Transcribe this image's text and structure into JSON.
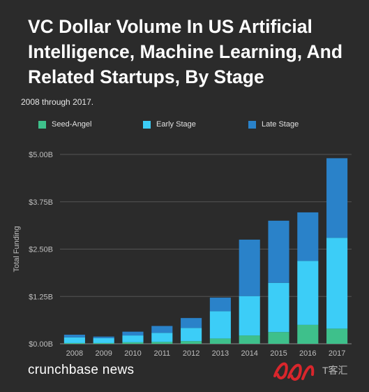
{
  "header": {
    "title": "VC Dollar Volume In US Artificial Intelligence, Machine Learning, And Related Startups, By Stage",
    "subtitle": "2008 through 2017."
  },
  "footer": {
    "brand": "crunchbase news",
    "watermark_text": "T客汇"
  },
  "colors": {
    "background": "#2b2b2b",
    "seed": "#3ec08b",
    "early": "#3ccdf7",
    "late": "#2a82c9",
    "grid": "#555555",
    "axis_text": "#bfbfbf"
  },
  "chart_data": {
    "type": "bar",
    "stacked": true,
    "title": "VC Dollar Volume In US Artificial Intelligence, Machine Learning, And Related Startups, By Stage",
    "subtitle": "2008 through 2017.",
    "xlabel": "",
    "ylabel": "Total Funding",
    "ylim": [
      0,
      5.0
    ],
    "yticks": [
      0,
      1.25,
      2.5,
      3.75,
      5.0
    ],
    "ytick_labels": [
      "$0.00B",
      "$1.25B",
      "$2.50B",
      "$3.75B",
      "$5.00B"
    ],
    "grid": true,
    "legend_position": "top",
    "categories": [
      "2008",
      "2009",
      "2010",
      "2011",
      "2012",
      "2013",
      "2014",
      "2015",
      "2016",
      "2017"
    ],
    "series": [
      {
        "name": "Seed-Angel",
        "color": "#3ec08b",
        "values": [
          0.02,
          0.02,
          0.04,
          0.05,
          0.07,
          0.14,
          0.22,
          0.31,
          0.5,
          0.4
        ]
      },
      {
        "name": "Early Stage",
        "color": "#3ccdf7",
        "values": [
          0.15,
          0.13,
          0.18,
          0.24,
          0.35,
          0.72,
          1.04,
          1.3,
          1.69,
          2.4
        ]
      },
      {
        "name": "Late Stage",
        "color": "#2a82c9",
        "values": [
          0.07,
          0.04,
          0.1,
          0.18,
          0.26,
          0.36,
          1.49,
          1.64,
          1.28,
          2.1
        ]
      }
    ]
  }
}
